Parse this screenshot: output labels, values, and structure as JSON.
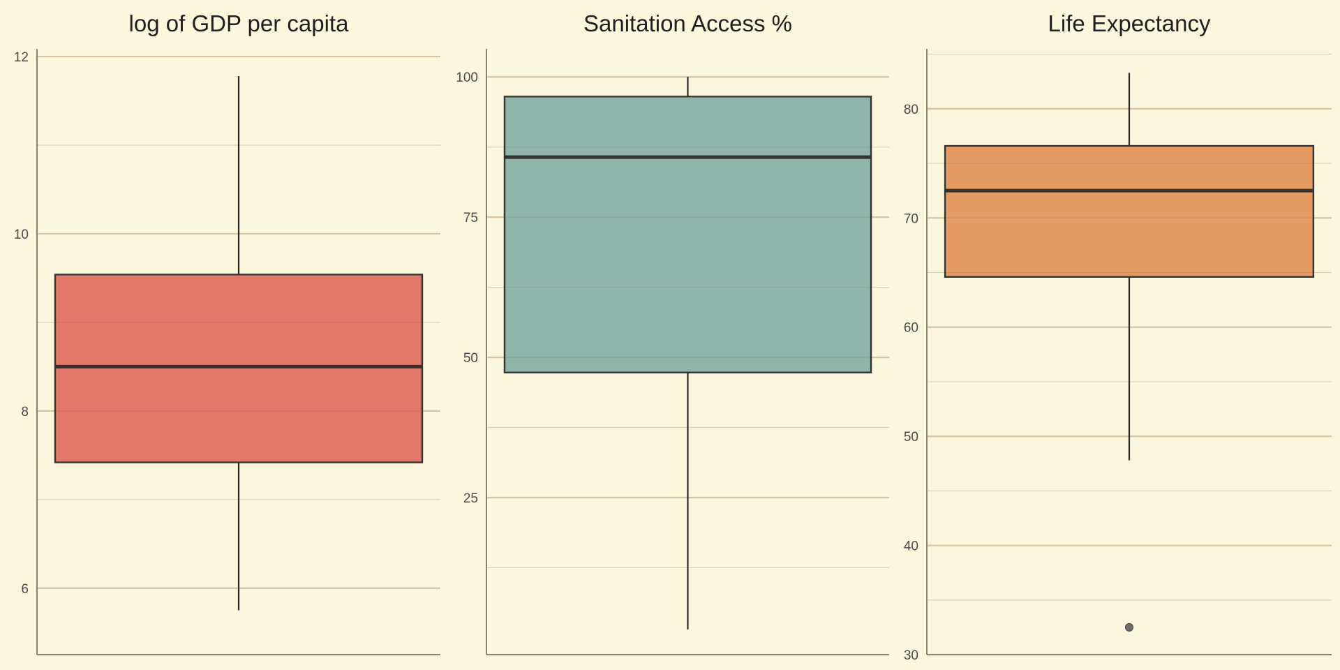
{
  "chart_data": [
    {
      "type": "box",
      "title": "log of GDP per capita",
      "ylim": [
        5.25,
        12.15
      ],
      "ticks": [
        6,
        8,
        10,
        12
      ],
      "minor_ticks": [
        7,
        9,
        11
      ],
      "color": "#e07466",
      "box": {
        "min": 5.75,
        "q1": 7.42,
        "median": 8.5,
        "q3": 9.54,
        "max": 11.78
      },
      "outliers": []
    },
    {
      "type": "box",
      "title": "Sanitation Access %",
      "ylim": [
        -3,
        106
      ],
      "ticks": [
        25,
        50,
        75,
        100
      ],
      "minor_ticks": [
        12.5,
        37.5,
        62.5,
        87.5
      ],
      "color": "#8db3a8",
      "box": {
        "min": 1.5,
        "q1": 47.3,
        "median": 85.7,
        "q3": 96.5,
        "max": 100
      },
      "outliers": []
    },
    {
      "type": "box",
      "title": "Life Expectancy",
      "ylim": [
        30,
        86
      ],
      "ticks": [
        30,
        40,
        50,
        60,
        70,
        80
      ],
      "minor_ticks": [
        35,
        45,
        55,
        65,
        75,
        85
      ],
      "color": "#e3975d",
      "box": {
        "min": 47.8,
        "q1": 64.6,
        "median": 72.5,
        "q3": 76.6,
        "max": 83.3
      },
      "outliers": [
        32.5
      ]
    }
  ]
}
